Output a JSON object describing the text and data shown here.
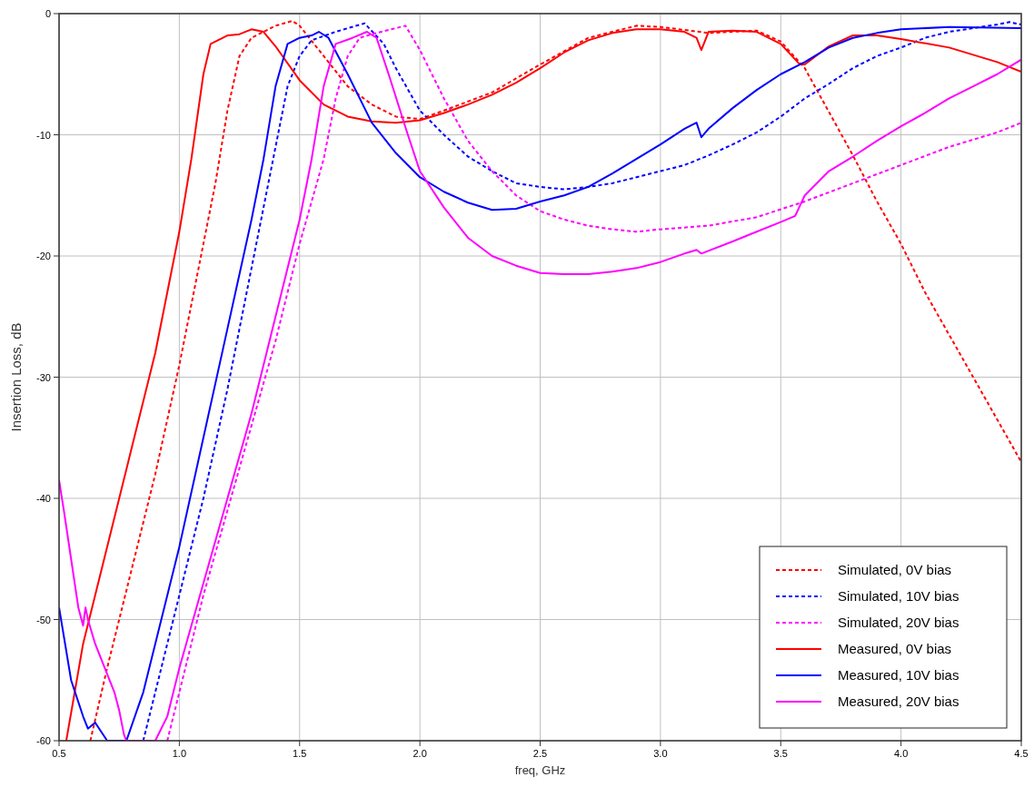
{
  "chart_data": {
    "type": "line",
    "xlabel": "freq, GHz",
    "ylabel": "Insertion Loss, dB",
    "xlim": [
      0.5,
      4.5
    ],
    "ylim": [
      -60,
      0
    ],
    "xticks": [
      {
        "value": 0.5,
        "label": "0.5"
      },
      {
        "value": 1,
        "label": "1.0"
      },
      {
        "value": 1.5,
        "label": "1.5"
      },
      {
        "value": 2,
        "label": "2.0"
      },
      {
        "value": 2.5,
        "label": "2.5"
      },
      {
        "value": 3,
        "label": "3.0"
      },
      {
        "value": 3.5,
        "label": "3.5"
      },
      {
        "value": 4,
        "label": "4.0"
      },
      {
        "value": 4.5,
        "label": "4.5"
      }
    ],
    "yticks": [
      -60,
      -50,
      -40,
      -30,
      -20,
      -10,
      0
    ],
    "grid": true,
    "legend": "bottom right",
    "series": [
      {
        "name": "Simulated, 0V bias",
        "color": "#ff0000",
        "line_style": "dashed",
        "x": [
          0.63,
          0.7,
          0.8,
          0.9,
          1.0,
          1.1,
          1.15,
          1.2,
          1.25,
          1.3,
          1.4,
          1.47,
          1.5,
          1.6,
          1.7,
          1.8,
          1.9,
          2.0,
          2.1,
          2.3,
          2.5,
          2.7,
          2.9,
          3.0,
          3.2,
          3.4,
          3.5,
          3.6,
          3.7,
          3.8,
          3.9,
          4.0,
          4.1,
          4.2,
          4.3,
          4.4,
          4.5
        ],
        "values": [
          -60,
          -54,
          -46,
          -38,
          -29,
          -19,
          -14,
          -8,
          -3.5,
          -2,
          -1,
          -0.6,
          -1,
          -3.5,
          -6,
          -7.5,
          -8.5,
          -8.7,
          -8,
          -6.5,
          -4.2,
          -2,
          -1,
          -1.1,
          -1.6,
          -1.4,
          -2.3,
          -4.5,
          -8.1,
          -11.7,
          -15.5,
          -19,
          -23,
          -26.5,
          -30,
          -33.5,
          -37
        ]
      },
      {
        "name": "Simulated, 10V bias",
        "color": "#0000ff",
        "line_style": "dashed",
        "x": [
          0.85,
          0.9,
          1.0,
          1.1,
          1.2,
          1.3,
          1.4,
          1.45,
          1.5,
          1.55,
          1.65,
          1.77,
          1.85,
          1.9,
          2.0,
          2.1,
          2.2,
          2.3,
          2.4,
          2.5,
          2.6,
          2.7,
          2.8,
          2.9,
          3.0,
          3.1,
          3.2,
          3.3,
          3.4,
          3.5,
          3.6,
          3.7,
          3.8,
          3.9,
          4.0,
          4.1,
          4.2,
          4.3,
          4.4,
          4.45,
          4.5
        ],
        "values": [
          -60,
          -56,
          -48,
          -40,
          -31,
          -21,
          -11,
          -6,
          -3.5,
          -2.2,
          -1.5,
          -0.8,
          -2.5,
          -4.5,
          -8,
          -10,
          -11.8,
          -13,
          -14,
          -14.3,
          -14.5,
          -14.3,
          -14,
          -13.5,
          -13,
          -12.5,
          -11.7,
          -10.8,
          -9.8,
          -8.5,
          -7,
          -5.8,
          -4.5,
          -3.5,
          -2.8,
          -2,
          -1.5,
          -1.2,
          -0.9,
          -0.7,
          -0.9
        ]
      },
      {
        "name": "Simulated, 20V bias",
        "color": "#ff00ff",
        "line_style": "dashed",
        "x": [
          0.95,
          1.0,
          1.1,
          1.2,
          1.3,
          1.4,
          1.5,
          1.6,
          1.65,
          1.7,
          1.75,
          1.8,
          1.9,
          1.94,
          2.0,
          2.1,
          2.2,
          2.3,
          2.4,
          2.5,
          2.6,
          2.7,
          2.8,
          2.9,
          3.0,
          3.2,
          3.4,
          3.6,
          3.8,
          4.0,
          4.2,
          4.4,
          4.5
        ],
        "values": [
          -60,
          -56,
          -48,
          -41,
          -34,
          -27,
          -19,
          -12,
          -7,
          -3.5,
          -2,
          -1.7,
          -1.2,
          -1,
          -3,
          -7,
          -10.5,
          -13,
          -15,
          -16.3,
          -17,
          -17.5,
          -17.8,
          -18,
          -17.8,
          -17.5,
          -16.8,
          -15.5,
          -14,
          -12.5,
          -11,
          -9.8,
          -9
        ]
      },
      {
        "name": "Measured, 0V bias",
        "color": "#ff0000",
        "line_style": "solid",
        "x": [
          0.53,
          0.6,
          0.7,
          0.8,
          0.9,
          1.0,
          1.05,
          1.1,
          1.13,
          1.2,
          1.25,
          1.3,
          1.35,
          1.4,
          1.5,
          1.6,
          1.7,
          1.8,
          1.9,
          2.0,
          2.1,
          2.2,
          2.3,
          2.4,
          2.5,
          2.6,
          2.7,
          2.8,
          2.9,
          3.0,
          3.1,
          3.15,
          3.17,
          3.2,
          3.3,
          3.4,
          3.5,
          3.58,
          3.6,
          3.7,
          3.8,
          3.9,
          4.0,
          4.2,
          4.4,
          4.5
        ],
        "values": [
          -60,
          -52,
          -44,
          -36,
          -28,
          -18,
          -12,
          -5,
          -2.5,
          -1.8,
          -1.7,
          -1.3,
          -1.5,
          -2.7,
          -5.5,
          -7.5,
          -8.5,
          -8.9,
          -9,
          -8.8,
          -8.2,
          -7.5,
          -6.7,
          -5.7,
          -4.5,
          -3.2,
          -2.2,
          -1.6,
          -1.3,
          -1.3,
          -1.5,
          -2,
          -3,
          -1.5,
          -1.4,
          -1.5,
          -2.5,
          -4.2,
          -4.2,
          -2.7,
          -1.8,
          -1.8,
          -2.1,
          -2.8,
          -4,
          -4.8
        ]
      },
      {
        "name": "Measured, 10V bias",
        "color": "#0000ff",
        "line_style": "solid",
        "x": [
          0.5,
          0.55,
          0.6,
          0.62,
          0.65,
          0.7,
          0.78,
          0.85,
          0.9,
          1.0,
          1.1,
          1.2,
          1.3,
          1.35,
          1.4,
          1.45,
          1.5,
          1.55,
          1.58,
          1.62,
          1.7,
          1.8,
          1.9,
          2.0,
          2.1,
          2.2,
          2.3,
          2.4,
          2.5,
          2.6,
          2.7,
          2.8,
          2.9,
          3.0,
          3.1,
          3.15,
          3.17,
          3.2,
          3.3,
          3.4,
          3.5,
          3.6,
          3.7,
          3.8,
          3.9,
          4.0,
          4.2,
          4.5
        ],
        "values": [
          -49,
          -55,
          -58,
          -59,
          -58.5,
          -60,
          -60,
          -56,
          -52,
          -44,
          -35,
          -26,
          -17,
          -12,
          -6,
          -2.5,
          -2,
          -1.8,
          -1.5,
          -2,
          -5,
          -9,
          -11.5,
          -13.5,
          -14.7,
          -15.6,
          -16.2,
          -16.1,
          -15.5,
          -15,
          -14.3,
          -13.2,
          -12,
          -10.8,
          -9.5,
          -9,
          -10.2,
          -9.5,
          -7.8,
          -6.3,
          -5,
          -4,
          -2.8,
          -2,
          -1.6,
          -1.3,
          -1.1,
          -1.2
        ]
      },
      {
        "name": "Measured, 20V bias",
        "color": "#ff00ff",
        "line_style": "solid",
        "x": [
          0.5,
          0.52,
          0.55,
          0.58,
          0.6,
          0.61,
          0.62,
          0.65,
          0.7,
          0.73,
          0.75,
          0.77,
          0.78,
          0.9,
          0.95,
          1.0,
          1.1,
          1.2,
          1.3,
          1.4,
          1.5,
          1.55,
          1.6,
          1.65,
          1.72,
          1.78,
          1.82,
          1.87,
          1.95,
          2.0,
          2.1,
          2.2,
          2.3,
          2.4,
          2.5,
          2.6,
          2.7,
          2.8,
          2.9,
          3.0,
          3.1,
          3.15,
          3.17,
          3.3,
          3.4,
          3.5,
          3.56,
          3.6,
          3.7,
          3.8,
          3.9,
          4.0,
          4.1,
          4.2,
          4.3,
          4.4,
          4.5
        ],
        "values": [
          -38.5,
          -41,
          -45,
          -49,
          -50.5,
          -49,
          -50,
          -52,
          -54.5,
          -56,
          -57.5,
          -59.5,
          -60,
          -60,
          -58,
          -54,
          -47,
          -40,
          -33,
          -25,
          -17,
          -12,
          -6,
          -2.5,
          -2,
          -1.5,
          -2,
          -5,
          -10,
          -13,
          -16,
          -18.5,
          -20,
          -20.8,
          -21.4,
          -21.5,
          -21.5,
          -21.3,
          -21,
          -20.5,
          -19.8,
          -19.5,
          -19.8,
          -18.8,
          -18,
          -17.2,
          -16.7,
          -15,
          -13,
          -11.8,
          -10.5,
          -9.3,
          -8.2,
          -7,
          -6,
          -5,
          -3.8
        ]
      }
    ]
  }
}
